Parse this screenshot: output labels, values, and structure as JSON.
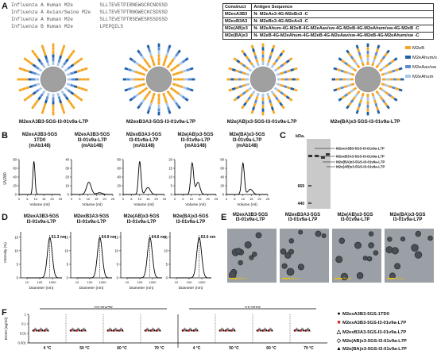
{
  "panel_labels": {
    "A": "A",
    "B": "B",
    "C": "C",
    "D": "D",
    "E": "E",
    "F": "F"
  },
  "sequences": [
    {
      "name": "Influenza A Human M2e",
      "seq": "SLLTEVETPIRNEWGCRCNDSSD"
    },
    {
      "name": "Influenza A Avian/Swine M2e",
      "seq": "SLLTEVETPTRNGWECKCSDSSD"
    },
    {
      "name": "Influenza A Human M2e",
      "seq": "SLLTEVETPTRSEWESRSSDSSD"
    },
    {
      "name": "Influenza B Human M2e",
      "seq": "LPEPQILS"
    }
  ],
  "table": {
    "headers": [
      "Construct",
      "Antigen Sequence"
    ],
    "rows": [
      [
        "M2exA3B3",
        "N- M2eAx3-4G-M2eBx3 -C"
      ],
      [
        "M2exB3A3",
        "N- M2eBx3-4G-M2eAx3 -C"
      ],
      [
        "M2e(AB)x3",
        "N- M2eAhum-4G-M2eB-4G-M2eAav/sw-4G-M2eB-4G-M2eAhum/sw-4G-M2eB -C"
      ],
      [
        "M2e(BA)x3",
        "N- M2eB-4G-M2eAhum-4G-M2eB-4G-M2eAav/sw-4G-M2eB-4G-M2eAhum/sw -C"
      ]
    ]
  },
  "nanoparticles": [
    {
      "caption": "M2exA3B3-5GS-I3-01v9a-L7P"
    },
    {
      "caption": "M2exB3A3-5GS-I3-01v9a-L7P"
    },
    {
      "caption": "M2e(AB)x3-5GS-I3-01v9a-L7P"
    },
    {
      "caption": "M2e(BA)x3-5GS-I3-01v9a-L7P"
    }
  ],
  "np_legend": [
    {
      "label": "M2eB",
      "color": "#f5a623"
    },
    {
      "label": "M2eAhum/sw",
      "color": "#1f5fa8"
    },
    {
      "label": "M2eAav/sw",
      "color": "#5b8ed0"
    },
    {
      "label": "M2eAhum",
      "color": "#a9c8ec"
    }
  ],
  "colors": {
    "M2eB": "#f5a623",
    "Ahum_sw": "#1f5fa8",
    "Aav_sw": "#5b8ed0",
    "Ahum": "#a9c8ec",
    "core": "#a0a0a0",
    "ec50_red": "#d32f2f"
  },
  "panelB": {
    "ylabel": "UV280",
    "xlabel": "Volume (ml)",
    "plots": [
      {
        "title": "M2exA3B3-5GS\n1TD0\n(mAb148)",
        "ymax": "80",
        "yticks": [
          "0",
          "20",
          "40",
          "60",
          "80"
        ]
      },
      {
        "title": "M2exA3B3-5GS\nI3-01v9a-L7P\n(mAb148)",
        "ymax": "40",
        "yticks": [
          "0",
          "10",
          "20",
          "30",
          "40"
        ]
      },
      {
        "title": "M2exB3A3-5GS\nI3-01v9a-L7P\n(mAb148)",
        "ymax": "80",
        "yticks": [
          "0",
          "20",
          "40",
          "60",
          "80"
        ]
      },
      {
        "title": "M2e(AB)x3-5GS\nI3-01v9a-L7P\n(mAb148)",
        "ymax": "20",
        "yticks": [
          "0",
          "5",
          "10",
          "15",
          "20"
        ]
      },
      {
        "title": "M2e(BA)x3-5GS\nI3-01v9a-L7P\n(mAb148)",
        "ymax": "80",
        "yticks": [
          "0",
          "20",
          "40",
          "60",
          "80"
        ]
      }
    ],
    "xticks": [
      "0",
      "5",
      "10",
      "15",
      "20",
      "25"
    ]
  },
  "panelC": {
    "unit": "kDa.",
    "markers": [
      "669",
      "440"
    ],
    "bands": [
      "M2exA3B3-5GS-I3-01v9a-L7P",
      "M2exB3A3-5GS-I3-01v9a-L7P",
      "M2e(BA)x3-5GS-I3-01v9a-L7P",
      "M2e(AB)x3-5GS-I3-01v9a-L7P"
    ]
  },
  "panelD": {
    "ylabel": "Intensity (%)",
    "xlabel": "Diameter (nm)",
    "plots": [
      {
        "title": "M2exA3B3-5GS\nI3-01v9a-L7P",
        "peak": "61.3 nm"
      },
      {
        "title": "M2exB3A3-5GS\nI3-01v9a-L7P",
        "peak": "64.9 nm"
      },
      {
        "title": "M2e(AB)x3-5GS\nI3-01v9a-L7P",
        "peak": "64.6 nm"
      },
      {
        "title": "M2e(BA)x3-5GS\nI3-01v9a-L7P",
        "peak": "63.0 nm"
      }
    ],
    "yticks": [
      "0",
      "5",
      "10",
      "15"
    ],
    "xticks": [
      "10",
      "100",
      "1000"
    ]
  },
  "panelE": {
    "images": [
      {
        "caption": "M2exA3B3-5GS\nI3-01v9a-L7P",
        "scale": "50 nm"
      },
      {
        "caption": "M2exB3A3-5GS\nI3-01v9a-L7P",
        "scale": "50 nm"
      },
      {
        "caption": "M2e(AB)x3-5GS\nI3-01v9a-L7P",
        "scale": "50 nm"
      },
      {
        "caption": "M2e(BA)x3-5GS\nI3-01v9a-L7P",
        "scale": "50 nm"
      }
    ]
  },
  "panelF": {
    "ylabel": "EC50 (ug/ml)",
    "group_labels": [
      "mAb148",
      "mAb65"
    ],
    "temps": [
      "4 °C",
      "50 °C",
      "60 °C",
      "70 °C",
      "4 °C",
      "50 °C",
      "60 °C",
      "70 °C"
    ],
    "yticks": [
      "0.001",
      "0.01",
      "0.1",
      "1"
    ],
    "legend": [
      {
        "marker": "●",
        "label": "M2exA3B3-5GS-1TD0"
      },
      {
        "marker": "■",
        "label": "M2exA3B3-5GS-I3-01v9a-L7P"
      },
      {
        "marker": "△",
        "label": "M2exB3A3-5GS-I3-01v9a-L7P"
      },
      {
        "marker": "◇",
        "label": "M2e(AB)x3-5GS-I3-01v9a-L7P"
      },
      {
        "marker": "▲",
        "label": "M2e(BA)x3-5GS-I3-01v9a-L7P"
      }
    ]
  },
  "chart_data": [
    {
      "type": "line",
      "title": "",
      "series_names": [],
      "note": "Panel B SEC profiles; peak near 10 ml",
      "x": [
        0,
        5,
        8,
        9,
        10,
        11,
        12,
        15,
        20,
        25
      ]
    },
    {
      "type": "scatter",
      "ylabel": "EC50 (ug/ml)",
      "ylim": [
        0.001,
        1
      ],
      "scale": "log",
      "series": [
        {
          "name": "M2exA3B3-5GS-1TD0",
          "values": [
            0.02,
            0.02,
            0.02,
            0.02,
            0.02,
            0.02,
            0.02,
            0.02
          ]
        },
        {
          "name": "M2exA3B3-5GS-I3-01v9a-L7P",
          "values": [
            0.02,
            0.02,
            0.02,
            0.02,
            0.02,
            0.02,
            0.02,
            0.02
          ]
        },
        {
          "name": "M2exB3A3-5GS-I3-01v9a-L7P",
          "values": [
            0.03,
            0.03,
            0.03,
            0.03,
            0.03,
            0.03,
            0.03,
            0.03
          ]
        },
        {
          "name": "M2e(AB)x3-5GS-I3-01v9a-L7P",
          "values": [
            0.025,
            0.025,
            0.025,
            0.025,
            0.025,
            0.025,
            0.025,
            0.025
          ]
        },
        {
          "name": "M2e(BA)x3-5GS-I3-01v9a-L7P",
          "values": [
            0.02,
            0.02,
            0.02,
            0.02,
            0.02,
            0.02,
            0.02,
            0.02
          ]
        }
      ]
    }
  ]
}
